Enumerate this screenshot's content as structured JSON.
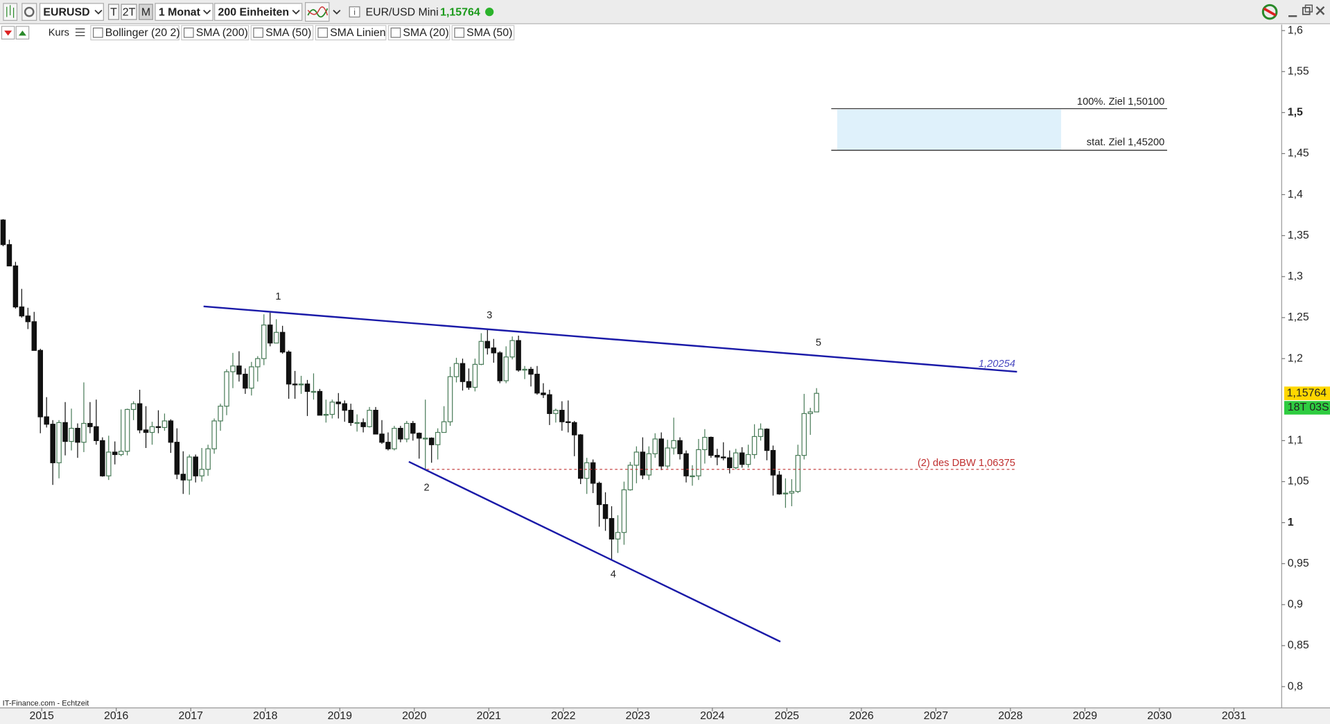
{
  "toolbar": {
    "symbol": "EURUSD",
    "buttons": [
      "T",
      "2T",
      "M"
    ],
    "interval": "1 Monat",
    "units": "200 Einheiten",
    "instrument": "EUR/USD Mini"
  },
  "indicators": {
    "price": "Kurs",
    "items": [
      "Bollinger (20 2)",
      "SMA (200)",
      "SMA (50)",
      "SMA Linien",
      "SMA (20)",
      "SMA (50)"
    ]
  },
  "chart_data": {
    "type": "candlestick",
    "source": "IT-Finance.com - Echtzeit",
    "xlim": [
      2014.44,
      2031.64
    ],
    "xticks": [
      2015,
      2016,
      2017,
      2018,
      2019,
      2020,
      2021,
      2022,
      2023,
      2024,
      2025,
      2026,
      2027,
      2028,
      2029,
      2030,
      2031
    ],
    "ylim": [
      0.8,
      1.6
    ],
    "yticks": [
      {
        "value": 0.8,
        "label": "0,8"
      },
      {
        "value": 0.85,
        "label": "0,85"
      },
      {
        "value": 0.9,
        "label": "0,9"
      },
      {
        "value": 0.95,
        "label": "0,95"
      },
      1,
      {
        "value": 1.05,
        "label": "1,05"
      },
      {
        "value": 1.1,
        "label": "1,1"
      },
      {
        "value": 1.2,
        "label": "1,2"
      },
      {
        "value": 1.25,
        "label": "1,25"
      },
      {
        "value": 1.3,
        "label": "1,3"
      },
      {
        "value": 1.35,
        "label": "1,35"
      },
      {
        "value": 1.4,
        "label": "1,4"
      },
      {
        "value": 1.45,
        "label": "1,45"
      },
      {
        "value": 1.5,
        "label": "1,5"
      },
      {
        "value": 1.55,
        "label": "1,55"
      },
      {
        "value": 1.6,
        "label": "1,6"
      }
    ],
    "up_color": "#4a7c59",
    "down_color": "#111111",
    "open": [
      1.369,
      1.339,
      1.313,
      1.263,
      1.252,
      1.245,
      1.21,
      1.129,
      1.12,
      1.073,
      1.122,
      1.099,
      1.115,
      1.098,
      1.121,
      1.117,
      1.1,
      1.057,
      1.086,
      1.083,
      1.087,
      1.138,
      1.145,
      1.113,
      1.11,
      1.117,
      1.116,
      1.124,
      1.098,
      1.059,
      1.052,
      1.08,
      1.057,
      1.065,
      1.09,
      1.124,
      1.142,
      1.184,
      1.191,
      1.181,
      1.164,
      1.19,
      1.2,
      1.241,
      1.219,
      1.232,
      1.208,
      1.169,
      1.168,
      1.169,
      1.16,
      1.16,
      1.131,
      1.132,
      1.147,
      1.145,
      1.137,
      1.122,
      1.122,
      1.117,
      1.137,
      1.108,
      1.098,
      1.09,
      1.115,
      1.102,
      1.121,
      1.109,
      1.103,
      1.103,
      1.095,
      1.11,
      1.123,
      1.178,
      1.194,
      1.172,
      1.165,
      1.193,
      1.221,
      1.213,
      1.207,
      1.173,
      1.202,
      1.222,
      1.186,
      1.187,
      1.181,
      1.158,
      1.156,
      1.133,
      1.137,
      1.123,
      1.122,
      1.107,
      1.054,
      1.073,
      1.048,
      1.022,
      1.005,
      0.98,
      0.988,
      1.04,
      1.07,
      1.086,
      1.058,
      1.084,
      1.102,
      1.069,
      1.091,
      1.1,
      1.084,
      1.057,
      1.057,
      1.089,
      1.104,
      1.082,
      1.08,
      1.079,
      1.067,
      1.085,
      1.071,
      1.083,
      1.105,
      1.114,
      1.088,
      1.058,
      1.035,
      1.036,
      1.038,
      1.082,
      1.133,
      1.135
    ],
    "high": [
      1.37,
      1.345,
      1.318,
      1.285,
      1.262,
      1.257,
      1.212,
      1.153,
      1.125,
      1.125,
      1.147,
      1.139,
      1.121,
      1.171,
      1.147,
      1.15,
      1.104,
      1.106,
      1.099,
      1.138,
      1.139,
      1.148,
      1.162,
      1.142,
      1.123,
      1.137,
      1.133,
      1.126,
      1.115,
      1.087,
      1.083,
      1.083,
      1.091,
      1.095,
      1.127,
      1.145,
      1.187,
      1.207,
      1.209,
      1.188,
      1.196,
      1.203,
      1.254,
      1.256,
      1.248,
      1.24,
      1.21,
      1.185,
      1.179,
      1.174,
      1.182,
      1.163,
      1.15,
      1.15,
      1.158,
      1.149,
      1.145,
      1.132,
      1.127,
      1.141,
      1.141,
      1.125,
      1.11,
      1.118,
      1.118,
      1.124,
      1.124,
      1.11,
      1.15,
      1.104,
      1.115,
      1.142,
      1.19,
      1.201,
      1.2,
      1.188,
      1.2,
      1.231,
      1.235,
      1.224,
      1.209,
      1.215,
      1.227,
      1.228,
      1.191,
      1.19,
      1.191,
      1.17,
      1.162,
      1.139,
      1.148,
      1.149,
      1.124,
      1.108,
      1.079,
      1.077,
      1.05,
      1.037,
      1.02,
      1.009,
      1.05,
      1.074,
      1.093,
      1.104,
      1.093,
      1.109,
      1.11,
      1.101,
      1.128,
      1.104,
      1.088,
      1.07,
      1.102,
      1.114,
      1.105,
      1.09,
      1.098,
      1.088,
      1.09,
      1.092,
      1.095,
      1.12,
      1.121,
      1.115,
      1.094,
      1.063,
      1.054,
      1.053,
      1.095,
      1.157,
      1.14,
      1.164
    ],
    "low": [
      1.337,
      1.313,
      1.261,
      1.25,
      1.236,
      1.21,
      1.109,
      1.116,
      1.046,
      1.054,
      1.082,
      1.088,
      1.079,
      1.086,
      1.109,
      1.095,
      1.056,
      1.052,
      1.071,
      1.081,
      1.082,
      1.125,
      1.109,
      1.091,
      1.095,
      1.109,
      1.112,
      1.085,
      1.053,
      1.035,
      1.034,
      1.049,
      1.05,
      1.057,
      1.084,
      1.112,
      1.131,
      1.164,
      1.172,
      1.157,
      1.155,
      1.172,
      1.192,
      1.215,
      1.219,
      1.206,
      1.151,
      1.151,
      1.157,
      1.13,
      1.15,
      1.132,
      1.122,
      1.127,
      1.127,
      1.123,
      1.118,
      1.111,
      1.11,
      1.116,
      1.11,
      1.096,
      1.088,
      1.088,
      1.098,
      1.098,
      1.1,
      1.078,
      1.064,
      1.073,
      1.077,
      1.11,
      1.118,
      1.171,
      1.161,
      1.162,
      1.16,
      1.192,
      1.205,
      1.195,
      1.17,
      1.17,
      1.199,
      1.184,
      1.175,
      1.166,
      1.156,
      1.152,
      1.119,
      1.122,
      1.112,
      1.11,
      1.081,
      1.047,
      1.035,
      1.036,
      0.995,
      0.99,
      0.954,
      0.963,
      0.973,
      1.039,
      1.048,
      1.053,
      1.052,
      1.079,
      1.064,
      1.066,
      1.083,
      1.077,
      1.049,
      1.045,
      1.052,
      1.072,
      1.079,
      1.07,
      1.076,
      1.06,
      1.065,
      1.067,
      1.067,
      1.078,
      1.1,
      1.076,
      1.033,
      1.034,
      1.018,
      1.02,
      1.036,
      1.077,
      1.107,
      1.135
    ],
    "close": [
      1.339,
      1.313,
      1.263,
      1.252,
      1.245,
      1.21,
      1.129,
      1.12,
      1.073,
      1.122,
      1.099,
      1.115,
      1.098,
      1.121,
      1.117,
      1.1,
      1.057,
      1.086,
      1.083,
      1.087,
      1.138,
      1.145,
      1.113,
      1.11,
      1.117,
      1.116,
      1.124,
      1.098,
      1.059,
      1.052,
      1.08,
      1.057,
      1.065,
      1.09,
      1.124,
      1.142,
      1.184,
      1.191,
      1.181,
      1.164,
      1.19,
      1.2,
      1.241,
      1.219,
      1.232,
      1.208,
      1.169,
      1.168,
      1.169,
      1.16,
      1.16,
      1.131,
      1.132,
      1.147,
      1.145,
      1.137,
      1.122,
      1.122,
      1.117,
      1.137,
      1.108,
      1.098,
      1.09,
      1.115,
      1.102,
      1.121,
      1.109,
      1.103,
      1.103,
      1.095,
      1.11,
      1.123,
      1.178,
      1.194,
      1.172,
      1.165,
      1.193,
      1.221,
      1.213,
      1.207,
      1.173,
      1.202,
      1.222,
      1.186,
      1.187,
      1.181,
      1.158,
      1.156,
      1.133,
      1.137,
      1.123,
      1.122,
      1.107,
      1.054,
      1.073,
      1.048,
      1.022,
      1.005,
      0.98,
      0.988,
      1.04,
      1.07,
      1.086,
      1.058,
      1.084,
      1.102,
      1.069,
      1.091,
      1.1,
      1.084,
      1.057,
      1.057,
      1.089,
      1.104,
      1.082,
      1.08,
      1.079,
      1.067,
      1.085,
      1.071,
      1.083,
      1.105,
      1.114,
      1.088,
      1.058,
      1.035,
      1.036,
      1.038,
      1.082,
      1.133,
      1.135,
      1.15764
    ],
    "last_price": {
      "value": 1.15764,
      "label": "1,15764"
    },
    "countdown": "18T 03S",
    "wave_labels": [
      "1",
      "2",
      "3",
      "4",
      "5"
    ],
    "trendline_label": "1,20254",
    "support_label": "(2) des DBW 1,06375",
    "target_labels": [
      "100%. Ziel 1,50100",
      "stat. Ziel 1,45200"
    ]
  }
}
